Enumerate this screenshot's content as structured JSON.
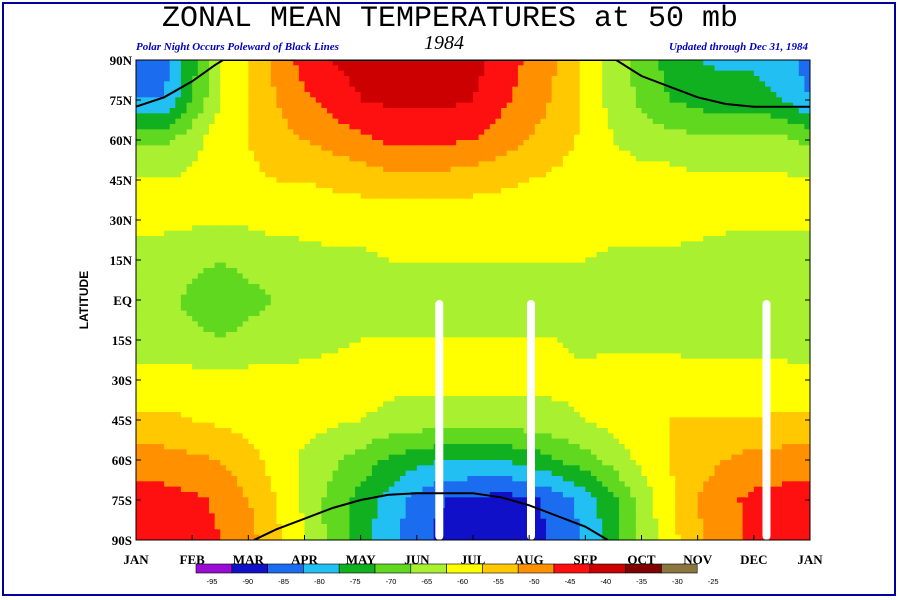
{
  "header": {
    "title": "ZONAL MEAN TEMPERATURES at 50 mb",
    "note": "Polar Night Occurs Poleward of Black Lines",
    "year": "1984",
    "updated": "Updated through Dec 31, 1984"
  },
  "colors": {
    "frame": "#0000a0",
    "note": "#0000c0"
  },
  "chart_data": {
    "type": "heatmap",
    "title": "ZONAL MEAN TEMPERATURES at 50 mb",
    "ylabel": "LATITUDE",
    "xlabel": "",
    "x_ticks": [
      "JAN",
      "FEB",
      "MAR",
      "APR",
      "MAY",
      "JUN",
      "JUL",
      "AUG",
      "SEP",
      "OCT",
      "NOV",
      "DEC",
      "JAN"
    ],
    "y_ticks": [
      "90N",
      "75N",
      "60N",
      "45N",
      "30N",
      "15N",
      "EQ",
      "15S",
      "30S",
      "45S",
      "60S",
      "75S",
      "90S"
    ],
    "xlim": [
      0,
      12
    ],
    "ylim": [
      -90,
      90
    ],
    "colorbar": {
      "levels": [
        "-95",
        "-90",
        "-85",
        "-80",
        "-75",
        "-70",
        "-65",
        "-60",
        "-55",
        "-50",
        "-45",
        "-40",
        "-35",
        "-30",
        "-25"
      ],
      "colors": [
        "#9a0cd6",
        "#1010c8",
        "#1c6cf0",
        "#22c0f2",
        "#10b020",
        "#60d820",
        "#a8f030",
        "#ffff00",
        "#ffc800",
        "#ff9000",
        "#ff1010",
        "#cc0000",
        "#800000",
        "#8c7640",
        "#808080"
      ]
    },
    "missing_data_days": [
      "Jun 13",
      "Aug 2",
      "Dec 8"
    ],
    "polar_night_boundary": {
      "north": [
        [
          0,
          72.5
        ],
        [
          0.5,
          76
        ],
        [
          1.0,
          82
        ],
        [
          1.4,
          88
        ],
        [
          1.55,
          90
        ],
        [
          8.55,
          90
        ],
        [
          9.0,
          84
        ],
        [
          9.5,
          80
        ],
        [
          10.0,
          76
        ],
        [
          10.5,
          73.5
        ],
        [
          11.0,
          72.5
        ],
        [
          12.0,
          72.5
        ]
      ],
      "south": [
        [
          2.1,
          -90
        ],
        [
          2.5,
          -86
        ],
        [
          3.0,
          -82
        ],
        [
          3.5,
          -78
        ],
        [
          4.0,
          -75
        ],
        [
          4.5,
          -73
        ],
        [
          5.0,
          -72.5
        ],
        [
          6.0,
          -72.5
        ],
        [
          6.5,
          -74
        ],
        [
          7.0,
          -77
        ],
        [
          7.5,
          -81
        ],
        [
          8.0,
          -85
        ],
        [
          8.4,
          -90
        ]
      ]
    },
    "grid": {
      "x": [
        0,
        0.5,
        1,
        1.5,
        2,
        2.5,
        3,
        3.5,
        4,
        4.5,
        5,
        5.5,
        6,
        6.5,
        7,
        7.5,
        8,
        8.5,
        9,
        9.5,
        10,
        10.5,
        11,
        11.5,
        12
      ],
      "y": [
        90,
        75,
        60,
        45,
        30,
        15,
        0,
        -15,
        -30,
        -45,
        -60,
        -75,
        -90
      ],
      "values": [
        [
          -82,
          -82,
          -72,
          -60,
          -55,
          -48,
          -43,
          -40,
          -38,
          -37,
          -37,
          -37,
          -38,
          -42,
          -46,
          -50,
          -56,
          -62,
          -67,
          -72,
          -75,
          -76,
          -76,
          -78,
          -82
        ],
        [
          -80,
          -80,
          -70,
          -60,
          -55,
          -50,
          -46,
          -43,
          -40,
          -39,
          -39,
          -39,
          -40,
          -44,
          -47,
          -51,
          -56,
          -62,
          -66,
          -70,
          -72,
          -73,
          -73,
          -75,
          -80
        ],
        [
          -66,
          -66,
          -62,
          -57,
          -55,
          -52,
          -50,
          -48,
          -46,
          -44,
          -44,
          -44,
          -45,
          -47,
          -50,
          -53,
          -56,
          -60,
          -62,
          -63,
          -64,
          -64,
          -64,
          -64,
          -66
        ],
        [
          -60,
          -60,
          -59,
          -57,
          -56,
          -55,
          -55,
          -54,
          -53,
          -52,
          -52,
          -52,
          -53,
          -54,
          -55,
          -56,
          -57,
          -58,
          -58,
          -58,
          -59,
          -59,
          -59,
          -59,
          -60
        ],
        [
          -59,
          -59,
          -59,
          -59,
          -59,
          -58,
          -58,
          -58,
          -58,
          -58,
          -58,
          -58,
          -58,
          -58,
          -58,
          -58,
          -58,
          -58,
          -58,
          -58,
          -58,
          -59,
          -59,
          -59,
          -59
        ],
        [
          -62,
          -62,
          -64,
          -65,
          -64,
          -63,
          -62,
          -61,
          -61,
          -60,
          -60,
          -60,
          -60,
          -60,
          -60,
          -60,
          -60,
          -61,
          -61,
          -61,
          -62,
          -62,
          -63,
          -63,
          -62
        ],
        [
          -64,
          -64,
          -66,
          -67,
          -66,
          -65,
          -64,
          -63,
          -62,
          -62,
          -61,
          -61,
          -61,
          -62,
          -62,
          -62,
          -62,
          -62,
          -63,
          -63,
          -64,
          -64,
          -65,
          -64,
          -64
        ],
        [
          -63,
          -63,
          -64,
          -65,
          -64,
          -63,
          -62,
          -61,
          -60,
          -60,
          -60,
          -60,
          -60,
          -60,
          -60,
          -60,
          -61,
          -61,
          -61,
          -61,
          -62,
          -62,
          -62,
          -62,
          -63
        ],
        [
          -58,
          -58,
          -58,
          -58,
          -58,
          -58,
          -58,
          -58,
          -58,
          -59,
          -59,
          -59,
          -59,
          -59,
          -59,
          -59,
          -59,
          -58,
          -58,
          -58,
          -58,
          -58,
          -58,
          -58,
          -58
        ],
        [
          -54,
          -54,
          -55,
          -56,
          -57,
          -58,
          -58,
          -59,
          -60,
          -61,
          -62,
          -62,
          -62,
          -62,
          -62,
          -61,
          -60,
          -58,
          -56,
          -55,
          -55,
          -55,
          -55,
          -54,
          -54
        ],
        [
          -48,
          -48,
          -49,
          -50,
          -53,
          -57,
          -61,
          -64,
          -67,
          -71,
          -73,
          -75,
          -75,
          -75,
          -73,
          -70,
          -67,
          -63,
          -59,
          -55,
          -52,
          -50,
          -48,
          -48,
          -48
        ],
        [
          -43,
          -43,
          -44,
          -46,
          -50,
          -55,
          -61,
          -67,
          -72,
          -77,
          -82,
          -85,
          -86,
          -87,
          -86,
          -83,
          -78,
          -71,
          -63,
          -56,
          -50,
          -46,
          -44,
          -43,
          -43
        ],
        [
          -42,
          -42,
          -43,
          -45,
          -48,
          -54,
          -60,
          -67,
          -73,
          -78,
          -83,
          -87,
          -88,
          -88,
          -87,
          -84,
          -79,
          -72,
          -64,
          -57,
          -51,
          -47,
          -44,
          -42,
          -42
        ]
      ]
    }
  }
}
